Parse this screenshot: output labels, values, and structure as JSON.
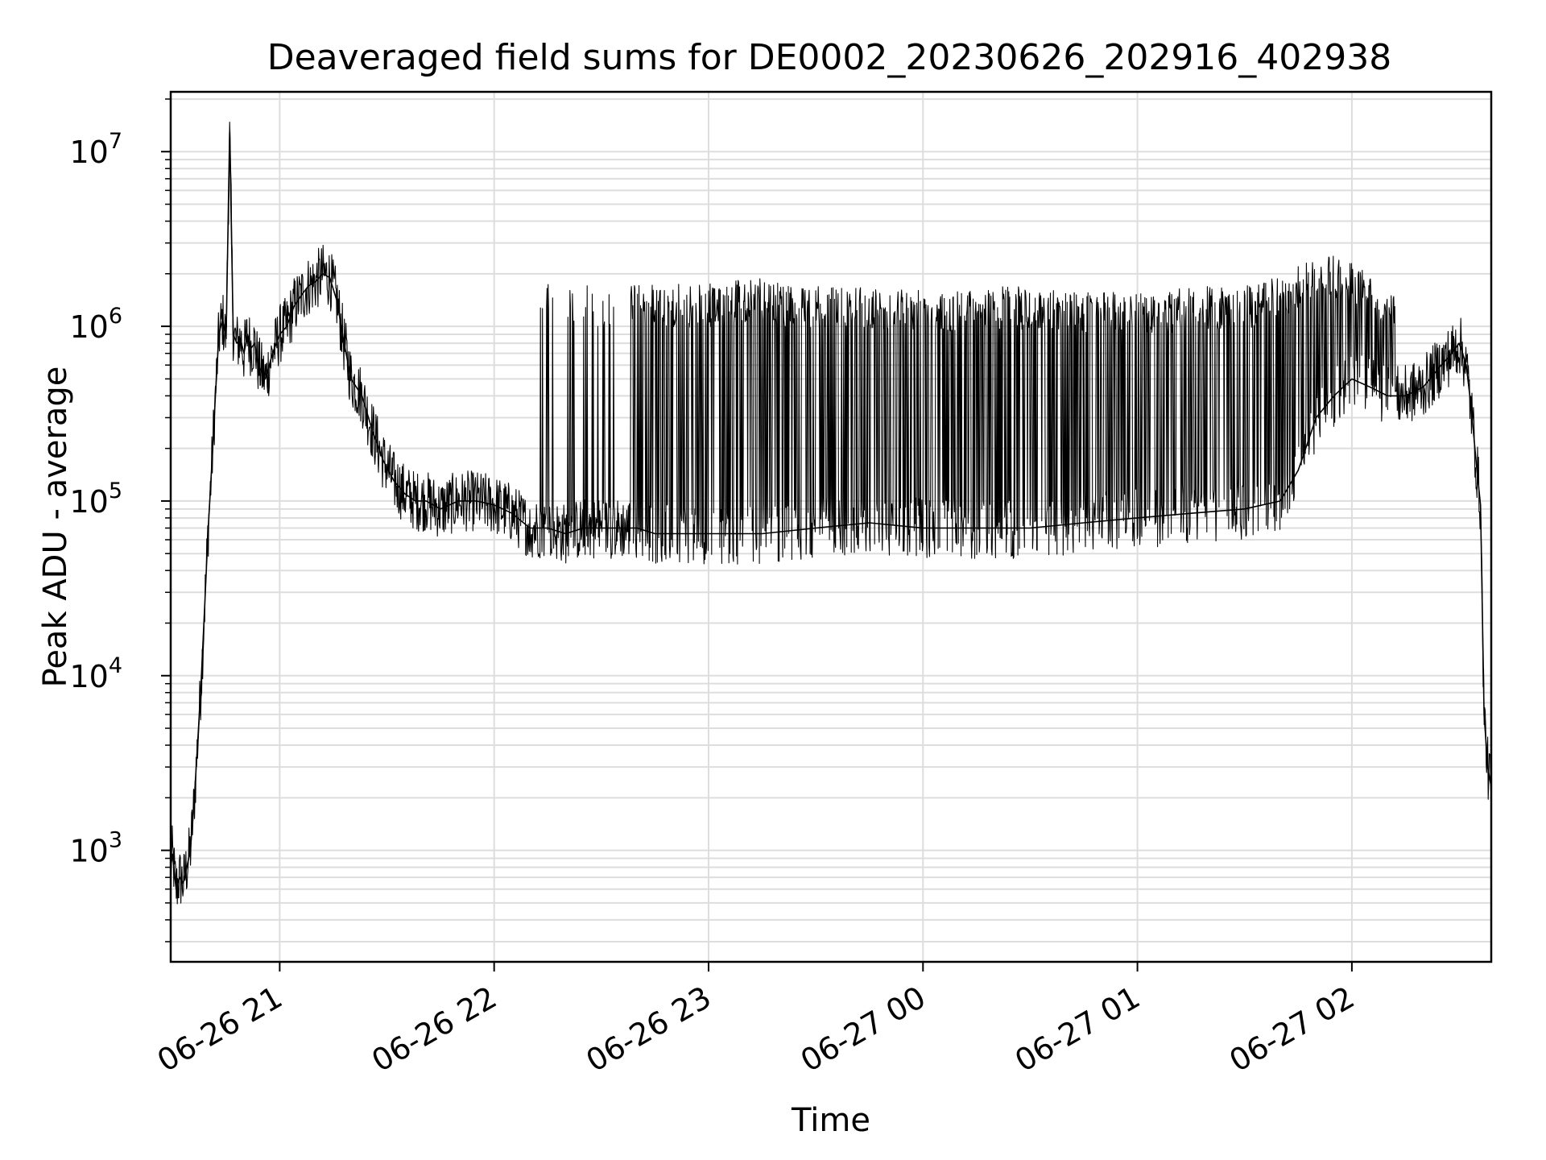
{
  "chart_data": {
    "type": "line",
    "title": "Deaveraged field sums for DE0002_20230626_202916_402938",
    "xlabel": "Time",
    "ylabel": "Peak ADU - average",
    "yscale": "log",
    "ylim": [
      230,
      22000000
    ],
    "xlim": [
      "2023-06-26 20:29:30",
      "2023-06-27 02:39:00"
    ],
    "grid": true,
    "legend": "none",
    "line_color": "#000000",
    "grid_color": "#dddddd",
    "x_ticks": [
      {
        "label": "06-26 21",
        "value": "2023-06-26 21:00"
      },
      {
        "label": "06-26 22",
        "value": "2023-06-26 22:00"
      },
      {
        "label": "06-26 23",
        "value": "2023-06-26 23:00"
      },
      {
        "label": "06-27 00",
        "value": "2023-06-27 00:00"
      },
      {
        "label": "06-27 01",
        "value": "2023-06-27 01:00"
      },
      {
        "label": "06-27 02",
        "value": "2023-06-27 02:00"
      }
    ],
    "y_ticks": [
      {
        "base": "10",
        "exp": "3",
        "value": 1000
      },
      {
        "base": "10",
        "exp": "4",
        "value": 10000
      },
      {
        "base": "10",
        "exp": "5",
        "value": 100000
      },
      {
        "base": "10",
        "exp": "6",
        "value": 1000000
      },
      {
        "base": "10",
        "exp": "7",
        "value": 10000000
      }
    ],
    "series": [
      {
        "x": [
          "2023-06-26 20:29:30",
          "2023-06-26 20:30:00",
          "2023-06-26 20:31:00",
          "2023-06-26 20:32:00",
          "2023-06-26 20:33:00",
          "2023-06-26 20:34:00",
          "2023-06-26 20:35:00",
          "2023-06-26 20:36:00",
          "2023-06-26 20:37:00",
          "2023-06-26 20:38:00",
          "2023-06-26 20:39:00",
          "2023-06-26 20:40:00",
          "2023-06-26 20:41:00",
          "2023-06-26 20:42:00",
          "2023-06-26 20:43:00",
          "2023-06-26 20:44:00",
          "2023-06-26 20:45:00",
          "2023-06-26 20:46:00",
          "2023-06-26 20:47:00",
          "2023-06-26 20:48:00",
          "2023-06-26 20:49:00",
          "2023-06-26 20:50:00",
          "2023-06-26 20:51:00",
          "2023-06-26 20:52:00",
          "2023-06-26 20:53:00",
          "2023-06-26 20:54:00",
          "2023-06-26 20:56:00",
          "2023-06-26 20:58:00",
          "2023-06-26 21:00:00",
          "2023-06-26 21:02:00",
          "2023-06-26 21:04:00",
          "2023-06-26 21:06:00",
          "2023-06-26 21:08:00",
          "2023-06-26 21:10:00",
          "2023-06-26 21:12:00",
          "2023-06-26 21:14:00",
          "2023-06-26 21:16:00",
          "2023-06-26 21:18:00",
          "2023-06-26 21:20:00",
          "2023-06-26 21:23:00",
          "2023-06-26 21:26:00",
          "2023-06-26 21:29:00",
          "2023-06-26 21:32:00",
          "2023-06-26 21:35:00",
          "2023-06-26 21:38:00",
          "2023-06-26 21:41:00",
          "2023-06-26 21:45:00",
          "2023-06-26 21:50:00",
          "2023-06-26 21:55:00",
          "2023-06-26 22:00:00",
          "2023-06-26 22:05:00",
          "2023-06-26 22:10:00",
          "2023-06-26 22:15:00",
          "2023-06-26 22:20:00",
          "2023-06-26 22:25:00",
          "2023-06-26 22:30:00",
          "2023-06-26 22:35:00",
          "2023-06-26 22:40:00",
          "2023-06-26 22:45:00",
          "2023-06-26 22:50:00",
          "2023-06-26 22:55:00",
          "2023-06-26 23:00:00",
          "2023-06-26 23:15:00",
          "2023-06-26 23:30:00",
          "2023-06-26 23:45:00",
          "2023-06-27 00:00:00",
          "2023-06-27 00:15:00",
          "2023-06-27 00:30:00",
          "2023-06-27 00:45:00",
          "2023-06-27 01:00:00",
          "2023-06-27 01:15:00",
          "2023-06-27 01:30:00",
          "2023-06-27 01:40:00",
          "2023-06-27 01:45:00",
          "2023-06-27 01:50:00",
          "2023-06-27 01:55:00",
          "2023-06-27 02:00:00",
          "2023-06-27 02:05:00",
          "2023-06-27 02:10:00",
          "2023-06-27 02:15:00",
          "2023-06-27 02:20:00",
          "2023-06-27 02:25:00",
          "2023-06-27 02:28:00",
          "2023-06-27 02:30:00",
          "2023-06-27 02:31:00",
          "2023-06-27 02:32:00",
          "2023-06-27 02:33:00",
          "2023-06-27 02:34:00",
          "2023-06-27 02:35:00",
          "2023-06-27 02:36:00",
          "2023-06-27 02:37:00",
          "2023-06-27 02:38:00",
          "2023-06-27 02:39:00"
        ],
        "y": [
          800,
          950,
          600,
          700,
          650,
          800,
          1000,
          1800,
          4000,
          9000,
          25000,
          70000,
          160000,
          400000,
          900000,
          1100000,
          850000,
          13000000,
          900000,
          800000,
          850000,
          700000,
          900000,
          750000,
          800000,
          600000,
          500000,
          700000,
          900000,
          1000000,
          1300000,
          1500000,
          1700000,
          1800000,
          2000000,
          1900000,
          1400000,
          800000,
          500000,
          400000,
          250000,
          170000,
          130000,
          110000,
          100000,
          100000,
          90000,
          100000,
          100000,
          95000,
          85000,
          70000,
          70000,
          65000,
          70000,
          70000,
          70000,
          70000,
          65000,
          65000,
          65000,
          65000,
          65000,
          70000,
          75000,
          70000,
          70000,
          70000,
          75000,
          80000,
          85000,
          90000,
          100000,
          150000,
          300000,
          400000,
          500000,
          450000,
          400000,
          400000,
          450000,
          600000,
          700000,
          800000,
          700000,
          600000,
          400000,
          250000,
          150000,
          95000,
          6000,
          3000,
          2300
        ]
      },
      {
        "x": [
          "2023-06-26 22:12:00",
          "2023-06-26 22:18:00",
          "2023-06-26 22:22:00",
          "2023-06-26 22:29:00",
          "2023-06-26 22:36:00",
          "2023-06-26 22:41:00",
          "2023-06-26 22:47:00",
          "2023-06-26 22:55:00",
          "2023-06-26 23:05:00",
          "2023-06-26 23:14:00",
          "2023-06-26 23:23:00",
          "2023-06-26 23:31:00",
          "2023-06-26 23:39:00",
          "2023-06-26 23:47:00",
          "2023-06-26 23:56:00",
          "2023-06-27 00:04:00",
          "2023-06-27 00:13:00",
          "2023-06-27 00:22:00",
          "2023-06-27 00:31:00",
          "2023-06-27 00:40:00",
          "2023-06-27 00:50:00",
          "2023-06-27 00:59:00",
          "2023-06-27 01:08:00",
          "2023-06-27 01:17:00",
          "2023-06-27 01:26:00",
          "2023-06-27 01:35:00",
          "2023-06-27 01:44:00",
          "2023-06-27 01:53:00",
          "2023-06-27 02:01:00",
          "2023-06-27 02:09:00"
        ],
        "y": [
          1800000,
          1700000,
          1800000,
          1700000,
          1800000,
          1750000,
          1800000,
          1700000,
          1800000,
          1900000,
          1750000,
          1700000,
          1750000,
          1700000,
          1700000,
          1650000,
          1650000,
          1700000,
          1700000,
          1650000,
          1600000,
          1650000,
          1600000,
          1700000,
          1700000,
          1750000,
          2200000,
          2600000,
          2400000,
          1800000
        ]
      }
    ]
  }
}
